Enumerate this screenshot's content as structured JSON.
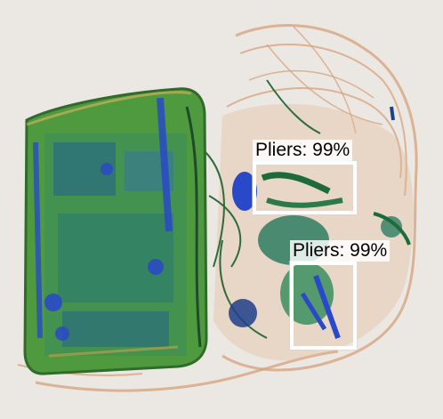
{
  "detections": [
    {
      "label": "Pliers: 99%"
    },
    {
      "label": "Pliers: 99%"
    }
  ],
  "colors": {
    "background": "#ebe7e2",
    "organic": "#d9a57a",
    "mixed_green": "#5fa24a",
    "metal_blue": "#2a49c8",
    "box": "#ffffff"
  }
}
